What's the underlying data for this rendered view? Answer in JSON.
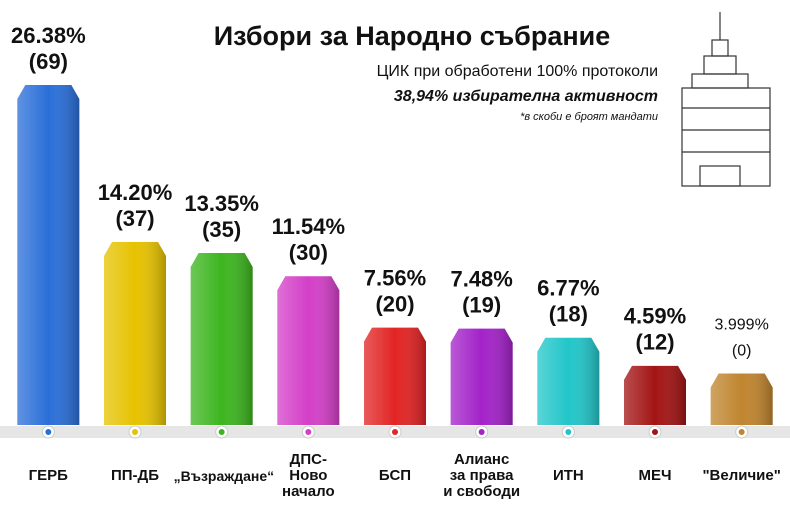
{
  "chart_data": {
    "type": "bar",
    "title": "Избори за Народно събрание",
    "subtitle": "ЦИК при обработени 100% протоколи",
    "turnout": "38,94% избирателна активност",
    "note": "*в скоби е броят мандати",
    "categories": [
      "ГЕРБ",
      "ПП-ДБ",
      "„Възраждане“",
      "ДПС-\nНово\nначало",
      "БСП",
      "Алианс\nза права\nи свободи",
      "ИТН",
      "МЕЧ",
      "\"Величие\""
    ],
    "values": [
      26.38,
      14.2,
      13.35,
      11.54,
      7.56,
      7.48,
      6.77,
      4.59,
      3.999
    ],
    "value_labels": [
      "26.38%",
      "14.20%",
      "13.35%",
      "11.54%",
      "7.56%",
      "7.48%",
      "6.77%",
      "4.59%",
      "3.999%"
    ],
    "mandate_labels": [
      "(69)",
      "(37)",
      "(35)",
      "(30)",
      "(20)",
      "(19)",
      "(18)",
      "(12)",
      "(0)"
    ],
    "colors": [
      "#2a6fd8",
      "#e6c200",
      "#3db51f",
      "#d43fc8",
      "#e22424",
      "#a322c9",
      "#22c6c9",
      "#a31414",
      "#c0852f"
    ]
  }
}
